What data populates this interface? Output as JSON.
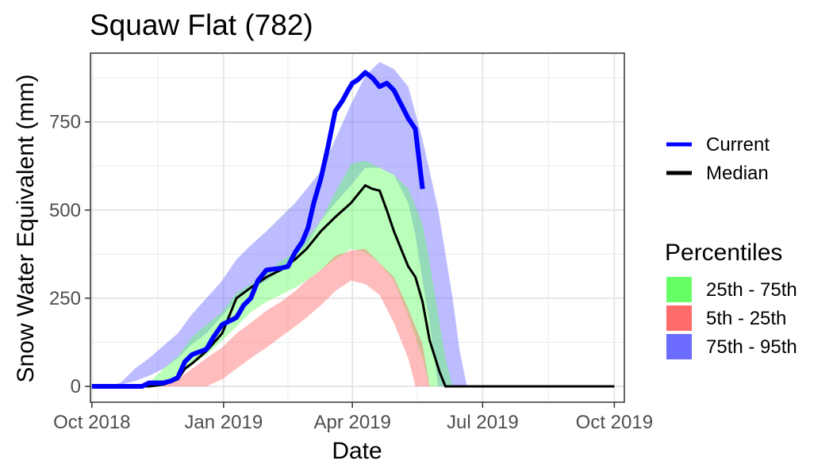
{
  "chart_data": {
    "type": "area",
    "title": "Squaw Flat (782)",
    "xlabel": "Date",
    "ylabel": "Snow Water Equivalent (mm)",
    "xlim": [
      "2018-09-30",
      "2019-10-08"
    ],
    "ylim": [
      -45,
      945
    ],
    "x_ticks": [
      {
        "date": "2018-10-01",
        "label": "Oct 2018"
      },
      {
        "date": "2019-01-01",
        "label": "Jan 2019"
      },
      {
        "date": "2019-04-01",
        "label": "Apr 2019"
      },
      {
        "date": "2019-07-01",
        "label": "Jul 2019"
      },
      {
        "date": "2019-10-01",
        "label": "Oct 2019"
      }
    ],
    "y_ticks": [
      0,
      250,
      500,
      750
    ],
    "grid": true,
    "legend_placement": "right",
    "bands": [
      {
        "name": "75th - 95th",
        "color": "#6b6bff",
        "fill_opacity": 0.45,
        "lower": [
          [
            "2018-10-01",
            0
          ],
          [
            "2018-10-11",
            0
          ],
          [
            "2018-10-21",
            5
          ],
          [
            "2018-10-31",
            15
          ],
          [
            "2018-11-10",
            30
          ],
          [
            "2018-11-20",
            50
          ],
          [
            "2018-11-30",
            80
          ],
          [
            "2018-12-10",
            120
          ],
          [
            "2018-12-20",
            150
          ],
          [
            "2018-12-31",
            200
          ],
          [
            "2019-01-10",
            245
          ],
          [
            "2019-01-20",
            275
          ],
          [
            "2019-01-31",
            300
          ],
          [
            "2019-02-10",
            330
          ],
          [
            "2019-02-20",
            370
          ],
          [
            "2019-02-28",
            400
          ],
          [
            "2019-03-10",
            470
          ],
          [
            "2019-03-20",
            520
          ],
          [
            "2019-03-31",
            570
          ],
          [
            "2019-04-10",
            620
          ],
          [
            "2019-04-20",
            620
          ],
          [
            "2019-04-30",
            600
          ],
          [
            "2019-05-10",
            520
          ],
          [
            "2019-05-15",
            430
          ],
          [
            "2019-05-20",
            300
          ],
          [
            "2019-05-25",
            180
          ],
          [
            "2019-05-31",
            0
          ],
          [
            "2019-10-01",
            0
          ]
        ],
        "upper": [
          [
            "2018-10-01",
            0
          ],
          [
            "2018-10-11",
            0
          ],
          [
            "2018-10-21",
            10
          ],
          [
            "2018-10-31",
            50
          ],
          [
            "2018-11-10",
            80
          ],
          [
            "2018-11-20",
            115
          ],
          [
            "2018-11-30",
            150
          ],
          [
            "2018-12-10",
            205
          ],
          [
            "2018-12-20",
            250
          ],
          [
            "2018-12-31",
            300
          ],
          [
            "2019-01-10",
            360
          ],
          [
            "2019-01-20",
            400
          ],
          [
            "2019-01-31",
            440
          ],
          [
            "2019-02-10",
            480
          ],
          [
            "2019-02-20",
            520
          ],
          [
            "2019-02-28",
            560
          ],
          [
            "2019-03-10",
            610
          ],
          [
            "2019-03-20",
            700
          ],
          [
            "2019-03-31",
            800
          ],
          [
            "2019-04-10",
            880
          ],
          [
            "2019-04-20",
            920
          ],
          [
            "2019-04-30",
            900
          ],
          [
            "2019-05-10",
            850
          ],
          [
            "2019-05-20",
            700
          ],
          [
            "2019-05-31",
            500
          ],
          [
            "2019-06-10",
            250
          ],
          [
            "2019-06-15",
            100
          ],
          [
            "2019-06-20",
            0
          ],
          [
            "2019-10-01",
            0
          ]
        ]
      },
      {
        "name": "25th - 75th",
        "color": "#66ff66",
        "fill_opacity": 0.45,
        "lower": [
          [
            "2018-10-01",
            0
          ],
          [
            "2018-11-01",
            0
          ],
          [
            "2018-11-20",
            10
          ],
          [
            "2018-11-30",
            30
          ],
          [
            "2018-12-10",
            60
          ],
          [
            "2018-12-20",
            90
          ],
          [
            "2018-12-31",
            130
          ],
          [
            "2019-01-10",
            170
          ],
          [
            "2019-01-20",
            210
          ],
          [
            "2019-01-31",
            240
          ],
          [
            "2019-02-10",
            260
          ],
          [
            "2019-02-20",
            280
          ],
          [
            "2019-02-28",
            300
          ],
          [
            "2019-03-10",
            330
          ],
          [
            "2019-03-20",
            360
          ],
          [
            "2019-03-31",
            390
          ],
          [
            "2019-04-10",
            380
          ],
          [
            "2019-04-20",
            350
          ],
          [
            "2019-04-30",
            300
          ],
          [
            "2019-05-10",
            200
          ],
          [
            "2019-05-20",
            80
          ],
          [
            "2019-05-25",
            0
          ],
          [
            "2019-10-01",
            0
          ]
        ],
        "upper": [
          [
            "2018-10-01",
            0
          ],
          [
            "2018-11-01",
            0
          ],
          [
            "2018-11-10",
            10
          ],
          [
            "2018-11-20",
            50
          ],
          [
            "2018-11-30",
            85
          ],
          [
            "2018-12-10",
            140
          ],
          [
            "2018-12-20",
            175
          ],
          [
            "2018-12-31",
            210
          ],
          [
            "2019-01-10",
            265
          ],
          [
            "2019-01-20",
            290
          ],
          [
            "2019-01-31",
            320
          ],
          [
            "2019-02-10",
            355
          ],
          [
            "2019-02-20",
            380
          ],
          [
            "2019-02-28",
            420
          ],
          [
            "2019-03-10",
            470
          ],
          [
            "2019-03-20",
            550
          ],
          [
            "2019-03-31",
            630
          ],
          [
            "2019-04-10",
            640
          ],
          [
            "2019-04-20",
            620
          ],
          [
            "2019-04-30",
            600
          ],
          [
            "2019-05-10",
            560
          ],
          [
            "2019-05-20",
            460
          ],
          [
            "2019-05-25",
            350
          ],
          [
            "2019-05-31",
            200
          ],
          [
            "2019-06-05",
            80
          ],
          [
            "2019-06-10",
            0
          ],
          [
            "2019-10-01",
            0
          ]
        ]
      },
      {
        "name": "5th - 25th",
        "color": "#ff6b6b",
        "fill_opacity": 0.45,
        "lower": [
          [
            "2018-10-01",
            0
          ],
          [
            "2018-12-20",
            0
          ],
          [
            "2018-12-31",
            20
          ],
          [
            "2019-01-10",
            50
          ],
          [
            "2019-01-20",
            80
          ],
          [
            "2019-01-31",
            110
          ],
          [
            "2019-02-10",
            140
          ],
          [
            "2019-02-20",
            170
          ],
          [
            "2019-02-28",
            195
          ],
          [
            "2019-03-10",
            230
          ],
          [
            "2019-03-20",
            270
          ],
          [
            "2019-03-31",
            300
          ],
          [
            "2019-04-10",
            290
          ],
          [
            "2019-04-20",
            260
          ],
          [
            "2019-04-30",
            180
          ],
          [
            "2019-05-10",
            80
          ],
          [
            "2019-05-15",
            0
          ],
          [
            "2019-10-01",
            0
          ]
        ],
        "upper": [
          [
            "2018-10-01",
            0
          ],
          [
            "2018-11-20",
            0
          ],
          [
            "2018-11-30",
            20
          ],
          [
            "2018-12-10",
            50
          ],
          [
            "2018-12-20",
            80
          ],
          [
            "2018-12-31",
            110
          ],
          [
            "2019-01-10",
            150
          ],
          [
            "2019-01-20",
            180
          ],
          [
            "2019-01-31",
            215
          ],
          [
            "2019-02-10",
            240
          ],
          [
            "2019-02-20",
            270
          ],
          [
            "2019-02-28",
            300
          ],
          [
            "2019-03-10",
            330
          ],
          [
            "2019-03-20",
            370
          ],
          [
            "2019-03-31",
            385
          ],
          [
            "2019-04-10",
            390
          ],
          [
            "2019-04-20",
            350
          ],
          [
            "2019-04-30",
            310
          ],
          [
            "2019-05-10",
            220
          ],
          [
            "2019-05-20",
            120
          ],
          [
            "2019-05-25",
            0
          ],
          [
            "2019-10-01",
            0
          ]
        ]
      }
    ],
    "series": [
      {
        "name": "Current",
        "color": "#0000ff",
        "points": [
          [
            "2018-10-01",
            0
          ],
          [
            "2018-10-20",
            0
          ],
          [
            "2018-11-05",
            0
          ],
          [
            "2018-11-10",
            10
          ],
          [
            "2018-11-20",
            10
          ],
          [
            "2018-11-25",
            15
          ],
          [
            "2018-11-30",
            25
          ],
          [
            "2018-12-05",
            70
          ],
          [
            "2018-12-10",
            90
          ],
          [
            "2018-12-20",
            105
          ],
          [
            "2018-12-25",
            140
          ],
          [
            "2018-12-31",
            175
          ],
          [
            "2019-01-10",
            195
          ],
          [
            "2019-01-15",
            230
          ],
          [
            "2019-01-20",
            250
          ],
          [
            "2019-01-25",
            300
          ],
          [
            "2019-01-31",
            330
          ],
          [
            "2019-02-10",
            335
          ],
          [
            "2019-02-15",
            340
          ],
          [
            "2019-02-20",
            380
          ],
          [
            "2019-02-25",
            410
          ],
          [
            "2019-03-01",
            450
          ],
          [
            "2019-03-05",
            520
          ],
          [
            "2019-03-10",
            590
          ],
          [
            "2019-03-15",
            680
          ],
          [
            "2019-03-20",
            780
          ],
          [
            "2019-03-25",
            810
          ],
          [
            "2019-03-29",
            840
          ],
          [
            "2019-04-01",
            860
          ],
          [
            "2019-04-05",
            870
          ],
          [
            "2019-04-10",
            890
          ],
          [
            "2019-04-15",
            875
          ],
          [
            "2019-04-20",
            850
          ],
          [
            "2019-04-25",
            860
          ],
          [
            "2019-04-30",
            840
          ],
          [
            "2019-05-05",
            800
          ],
          [
            "2019-05-10",
            760
          ],
          [
            "2019-05-15",
            730
          ],
          [
            "2019-05-20",
            560
          ]
        ]
      },
      {
        "name": "Median",
        "color": "#000000",
        "points": [
          [
            "2018-10-01",
            0
          ],
          [
            "2018-11-10",
            0
          ],
          [
            "2018-11-20",
            5
          ],
          [
            "2018-11-30",
            20
          ],
          [
            "2018-12-05",
            50
          ],
          [
            "2018-12-10",
            65
          ],
          [
            "2018-12-20",
            100
          ],
          [
            "2018-12-31",
            150
          ],
          [
            "2019-01-05",
            200
          ],
          [
            "2019-01-10",
            250
          ],
          [
            "2019-01-20",
            280
          ],
          [
            "2019-01-31",
            310
          ],
          [
            "2019-02-10",
            330
          ],
          [
            "2019-02-20",
            360
          ],
          [
            "2019-02-28",
            390
          ],
          [
            "2019-03-10",
            440
          ],
          [
            "2019-03-20",
            480
          ],
          [
            "2019-03-31",
            520
          ],
          [
            "2019-04-05",
            545
          ],
          [
            "2019-04-10",
            570
          ],
          [
            "2019-04-15",
            560
          ],
          [
            "2019-04-20",
            555
          ],
          [
            "2019-04-25",
            500
          ],
          [
            "2019-04-30",
            440
          ],
          [
            "2019-05-05",
            390
          ],
          [
            "2019-05-10",
            340
          ],
          [
            "2019-05-15",
            310
          ],
          [
            "2019-05-20",
            240
          ],
          [
            "2019-05-25",
            130
          ],
          [
            "2019-06-01",
            40
          ],
          [
            "2019-06-05",
            0
          ],
          [
            "2019-10-01",
            0
          ]
        ]
      }
    ]
  },
  "legend": {
    "lines": [
      {
        "label": "Current",
        "color": "#0000ff"
      },
      {
        "label": "Median",
        "color": "#000000"
      }
    ],
    "percentiles_title": "Percentiles",
    "percentiles": [
      {
        "label": "25th - 75th",
        "color": "#66ff66"
      },
      {
        "label": "5th - 25th",
        "color": "#ff6b6b"
      },
      {
        "label": "75th - 95th",
        "color": "#6b6bff"
      }
    ]
  }
}
